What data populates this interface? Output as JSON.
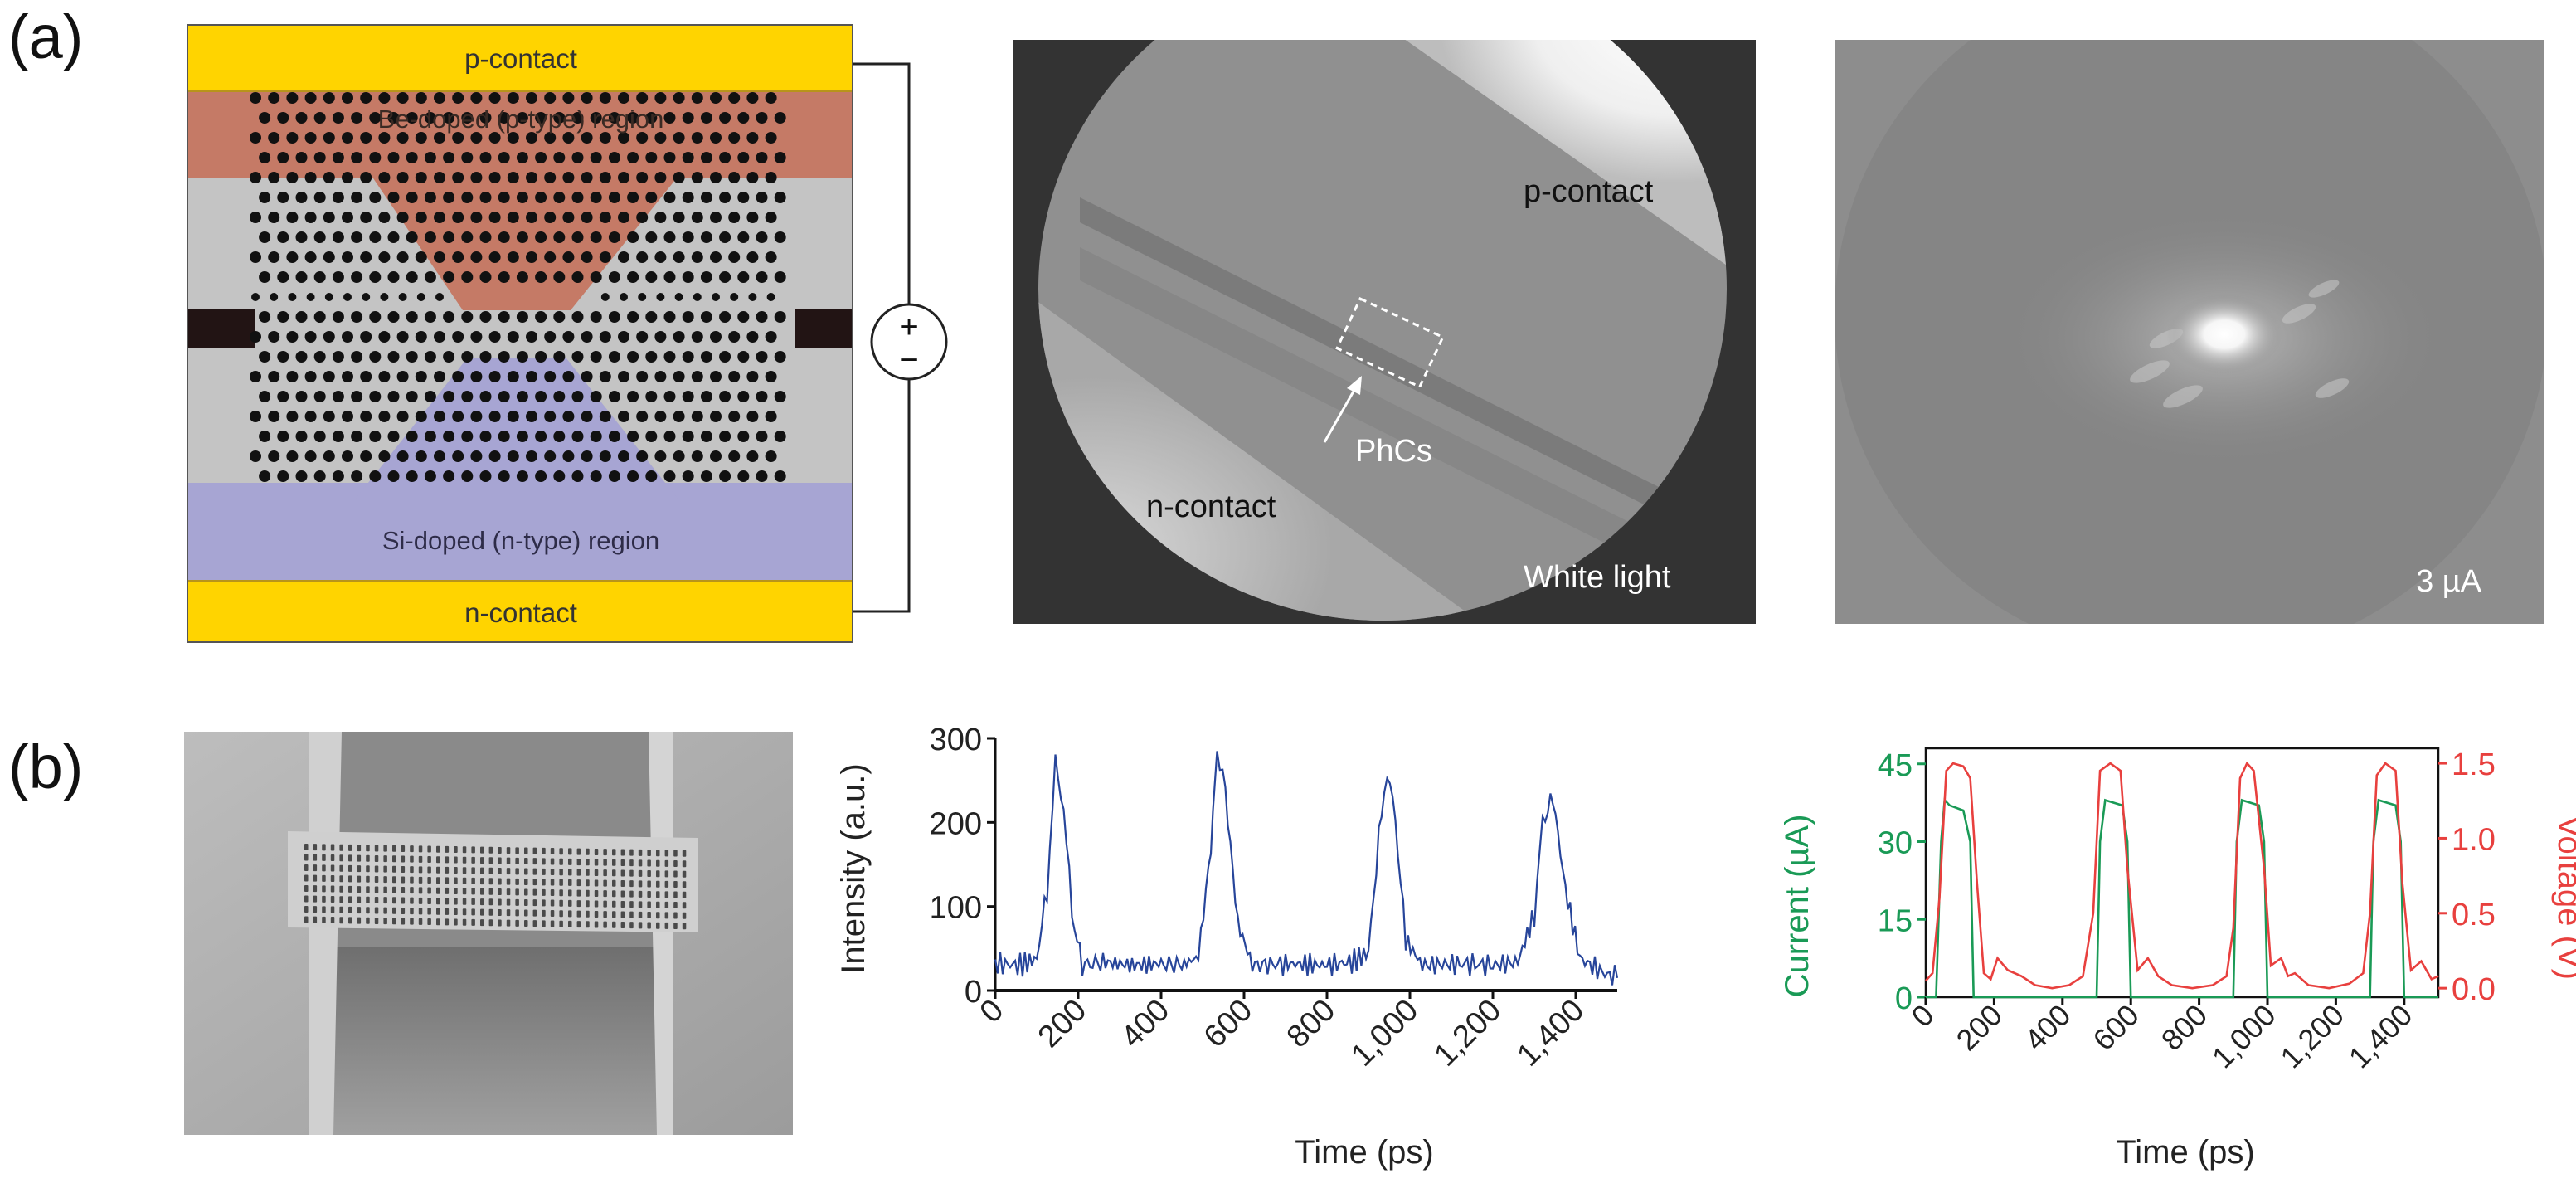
{
  "panel_labels": {
    "a": "(a)",
    "b": "(b)"
  },
  "device_schematic": {
    "p_contact": "p-contact",
    "p_region": "Be-doped (p-type) region",
    "n_region": "Si-doped (n-type) region",
    "n_contact": "n-contact",
    "source_plus": "+",
    "source_minus": "−",
    "colors": {
      "contact": "#ffd400",
      "p_region": "#c57a66",
      "n_region": "#a7a5d3",
      "membrane": "#c4c4c4",
      "hole": "#111111"
    }
  },
  "white_light_image": {
    "p_contact": "p-contact",
    "n_contact": "n-contact",
    "phcs": "PhCs",
    "illumination": "White light"
  },
  "emission_image": {
    "current": "3 µA"
  },
  "charts": [
    {
      "name": "intensity-chart",
      "type": "line",
      "title": "",
      "xlabel": "Time (ps)",
      "ylabel": "Intensity (a.u.)",
      "xlim": [
        0,
        1500
      ],
      "ylim": [
        0,
        300
      ],
      "xticks": [
        0,
        200,
        400,
        600,
        800,
        1000,
        1200,
        1400
      ],
      "xtick_labels": [
        "0",
        "200",
        "400",
        "600",
        "800",
        "1,000",
        "1,200",
        "1,400"
      ],
      "yticks": [
        0,
        100,
        200,
        300
      ],
      "ytick_labels": [
        "0",
        "100",
        "200",
        "300"
      ],
      "series": [
        {
          "name": "Intensity",
          "color": "#27459a",
          "x": [
            0,
            60,
            100,
            125,
            145,
            165,
            185,
            210,
            260,
            330,
            400,
            450,
            490,
            520,
            535,
            555,
            585,
            620,
            700,
            800,
            860,
            900,
            925,
            945,
            965,
            990,
            1030,
            1120,
            1200,
            1260,
            1300,
            1320,
            1345,
            1375,
            1410,
            1470,
            1500
          ],
          "y": [
            32,
            30,
            38,
            120,
            268,
            220,
            90,
            30,
            34,
            30,
            32,
            30,
            40,
            170,
            288,
            235,
            80,
            30,
            32,
            30,
            34,
            45,
            180,
            265,
            200,
            60,
            30,
            32,
            30,
            34,
            90,
            200,
            230,
            120,
            38,
            20,
            15
          ]
        }
      ]
    },
    {
      "name": "current-voltage-chart",
      "type": "line",
      "title": "",
      "xlabel": "Time (ps)",
      "ylabel_left": "Current (µA)",
      "ylabel_right": "Voltage (V)",
      "xlim": [
        0,
        1500
      ],
      "ylim_left": [
        0,
        48
      ],
      "ylim_right": [
        -0.06,
        1.6
      ],
      "xticks": [
        0,
        200,
        400,
        600,
        800,
        1000,
        1200,
        1400
      ],
      "xtick_labels": [
        "0",
        "200",
        "400",
        "600",
        "800",
        "1,000",
        "1,200",
        "1,400"
      ],
      "yticks_left": [
        0,
        15,
        30,
        45
      ],
      "ytick_labels_left": [
        "0",
        "15",
        "30",
        "45"
      ],
      "yticks_right": [
        0,
        0.5,
        1.0,
        1.5
      ],
      "ytick_labels_right": [
        "0.0",
        "0.5",
        "1.0",
        "1.5"
      ],
      "series": [
        {
          "name": "Current",
          "axis": "left",
          "color": "#1a9a56",
          "x": [
            0,
            30,
            45,
            55,
            70,
            110,
            130,
            140,
            500,
            510,
            525,
            575,
            590,
            600,
            900,
            910,
            925,
            975,
            990,
            1000,
            1300,
            1310,
            1325,
            1375,
            1390,
            1400,
            1500
          ],
          "y": [
            0,
            0,
            30,
            38,
            37,
            36,
            30,
            0,
            0,
            30,
            38,
            37,
            30,
            0,
            0,
            30,
            38,
            37,
            30,
            0,
            0,
            30,
            38,
            37,
            30,
            0,
            0
          ]
        },
        {
          "name": "Voltage",
          "axis": "right",
          "color": "#e8403e",
          "x": [
            0,
            20,
            40,
            60,
            80,
            110,
            130,
            150,
            170,
            190,
            210,
            240,
            280,
            320,
            370,
            420,
            460,
            490,
            510,
            540,
            570,
            590,
            620,
            650,
            680,
            720,
            780,
            840,
            880,
            900,
            920,
            940,
            960,
            990,
            1010,
            1040,
            1060,
            1080,
            1120,
            1180,
            1240,
            1280,
            1300,
            1320,
            1345,
            1375,
            1395,
            1420,
            1450,
            1480,
            1500
          ],
          "y": [
            0.05,
            0.1,
            0.6,
            1.45,
            1.5,
            1.48,
            1.4,
            0.7,
            0.1,
            0.06,
            0.2,
            0.12,
            0.08,
            0.02,
            0.0,
            0.02,
            0.08,
            0.5,
            1.45,
            1.5,
            1.45,
            0.8,
            0.12,
            0.2,
            0.08,
            0.02,
            0.0,
            0.02,
            0.08,
            0.4,
            1.4,
            1.5,
            1.45,
            0.8,
            0.15,
            0.2,
            0.08,
            0.1,
            0.02,
            0.0,
            0.03,
            0.1,
            0.5,
            1.42,
            1.5,
            1.45,
            0.7,
            0.12,
            0.18,
            0.06,
            0.08
          ]
        }
      ]
    }
  ]
}
